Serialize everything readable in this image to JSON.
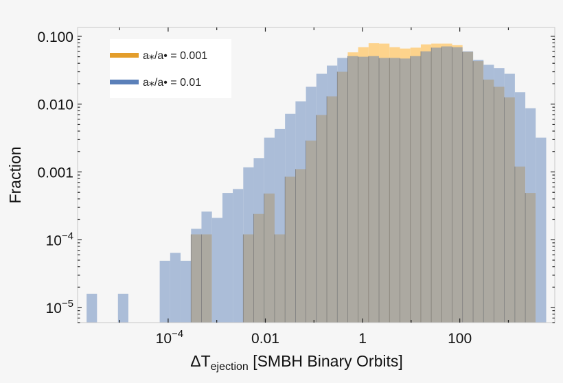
{
  "chart_data": {
    "type": "bar",
    "subtype": "histogram",
    "title": "",
    "xlabel": {
      "main": "ΔT",
      "sub": "ejection",
      "rest": " [SMBH Binary Orbits]"
    },
    "ylabel": "Fraction",
    "xscale": "log",
    "yscale": "log",
    "xlim": [
      1.37e-06,
      9000
    ],
    "ylim": [
      6e-06,
      0.135
    ],
    "grid": false,
    "legend_position": "top-left",
    "xticks": [
      {
        "value": 0.0001,
        "base": "10",
        "exp": "−4"
      },
      {
        "value": 0.01,
        "base": "0.01",
        "exp": ""
      },
      {
        "value": 1,
        "base": "1",
        "exp": ""
      },
      {
        "value": 100,
        "base": "100",
        "exp": ""
      }
    ],
    "yticks": [
      {
        "value": 0.1,
        "base": "0.100",
        "exp": ""
      },
      {
        "value": 0.01,
        "base": "0.010",
        "exp": ""
      },
      {
        "value": 0.001,
        "base": "0.001",
        "exp": ""
      },
      {
        "value": 0.0001,
        "base": "10",
        "exp": "−4"
      },
      {
        "value": 1e-05,
        "base": "10",
        "exp": "−5"
      }
    ],
    "bin_edges": [
      2.1e-06,
      3.44e-06,
      5.65e-06,
      9.27e-06,
      1.52e-05,
      2.49e-05,
      4.09e-05,
      6.7e-05,
      0.00011,
      0.00018,
      0.000296,
      0.000485,
      0.000796,
      0.00131,
      0.00214,
      0.00351,
      0.00575,
      0.00944,
      0.0155,
      0.0254,
      0.0417,
      0.0684,
      0.112,
      0.184,
      0.302,
      0.495,
      0.812,
      1.33,
      2.18,
      3.58,
      5.88,
      9.64,
      15.8,
      25.9,
      42.5,
      69.7,
      114,
      188,
      308,
      505,
      828,
      1360,
      2230,
      3650,
      6000
    ],
    "series": [
      {
        "name": "a⁎/a• = 0.001",
        "color": "#e39d2b",
        "fill": "#fdd38c",
        "values": [
          0,
          0,
          0,
          0,
          0,
          0,
          0,
          0,
          0,
          0,
          0.00012,
          0.00012,
          0,
          0,
          0,
          0.00012,
          0.00024,
          0.00048,
          0.00012,
          0.00085,
          0.0011,
          0.0029,
          0.0069,
          0.013,
          0.03,
          0.058,
          0.069,
          0.079,
          0.078,
          0.069,
          0.066,
          0.068,
          0.076,
          0.078,
          0.078,
          0.074,
          0.059,
          0.043,
          0.023,
          0.018,
          0.0126,
          0.0012,
          0.00049,
          0
        ]
      },
      {
        "name": "a⁎/a• = 0.01",
        "color": "#5b80b9",
        "fill": "#abbdd8",
        "values": [
          1.6e-05,
          0,
          0,
          1.6e-05,
          0,
          0,
          0,
          4.9e-05,
          6.4e-05,
          4.9e-05,
          0.000145,
          0.00026,
          0.00021,
          0.00049,
          0.00056,
          0.00117,
          0.0016,
          0.0032,
          0.0043,
          0.0072,
          0.011,
          0.018,
          0.028,
          0.037,
          0.048,
          0.051,
          0.05,
          0.051,
          0.048,
          0.048,
          0.047,
          0.051,
          0.06,
          0.068,
          0.071,
          0.069,
          0.06,
          0.045,
          0.038,
          0.034,
          0.028,
          0.015,
          0.0087,
          0.0032
        ]
      }
    ],
    "overlap_color": "#aca9a1"
  }
}
